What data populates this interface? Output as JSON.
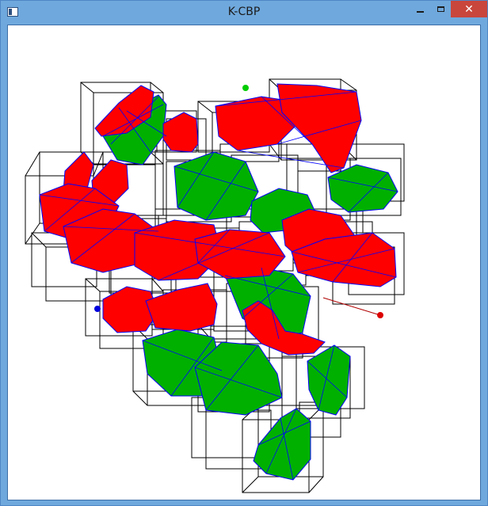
{
  "window": {
    "title": "K-CBP"
  },
  "icons": {
    "app": "app-window-icon",
    "minimize": "minimize-icon",
    "maximize": "maximize-icon",
    "close": "close-icon"
  },
  "colors": {
    "titlebar": "#6fa8dc",
    "close": "#c9463c",
    "particle_red": "#ff0000",
    "particle_green": "#00b000",
    "mesh_edge": "#0000ff",
    "box_edge": "#000000"
  }
}
